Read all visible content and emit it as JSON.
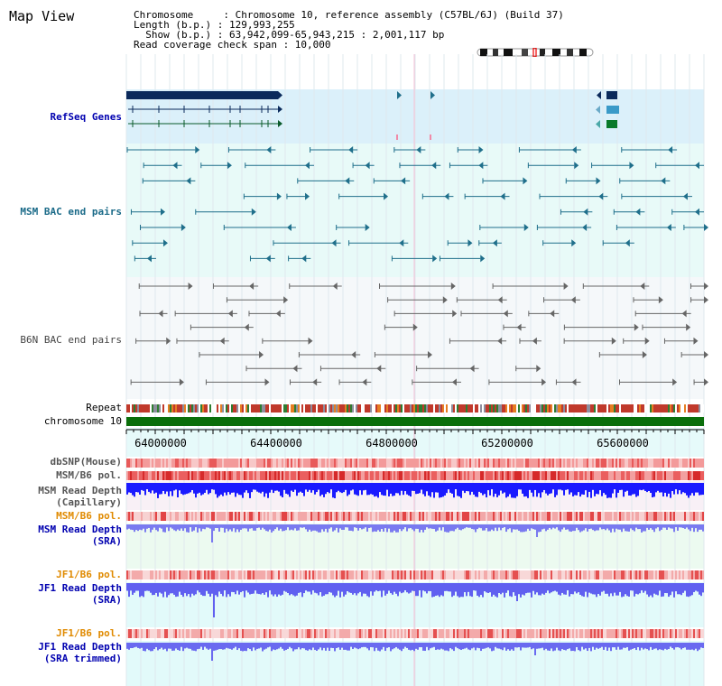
{
  "header": {
    "title": "Map View",
    "info_lines": [
      "Chromosome     : Chromosome 10, reference assembly (C57BL/6J) (Build 37)",
      "Length (b.p.) : 129,993,255",
      "  Show (b.p.) : 63,942,099-65,943,215 : 2,001,117 bp",
      "Read coverage check span : 10,000"
    ]
  },
  "tracks": {
    "refseq": "RefSeq Genes",
    "msm_bac": "MSM BAC end pairs",
    "b6n_bac": "B6N BAC end pairs",
    "repeat": "Repeat",
    "chromosome": "chromosome 10",
    "dbsnp": "dbSNP(Mouse)",
    "msm_b6_pol_1": "MSM/B6 pol.",
    "msm_depth_cap_1": "MSM Read Depth",
    "msm_depth_cap_2": "(Capillary)",
    "msm_b6_pol_2": "MSM/B6 pol.",
    "msm_depth_sra_1": "MSM Read Depth",
    "msm_depth_sra_2": "(SRA)",
    "jf1_b6_pol_1": "JF1/B6 pol.",
    "jf1_depth_sra_1": "JF1 Read Depth",
    "jf1_depth_sra_2": "(SRA)",
    "jf1_b6_pol_2": "JF1/B6 pol.",
    "jf1_depth_trim_1": "JF1 Read Depth",
    "jf1_depth_trim_2": "(SRA trimmed)"
  },
  "axis": {
    "ticks": [
      "64000000",
      "64400000",
      "64800000",
      "65200000",
      "65600000"
    ]
  },
  "colors": {
    "navy": "#0b2a5b",
    "teal": "#1f6f8b",
    "grey": "#666666",
    "label_blue": "#0000b0",
    "label_teal": "#1a6a88",
    "label_orange": "#e08a00",
    "chrom_green": "#0a6e0a"
  }
}
